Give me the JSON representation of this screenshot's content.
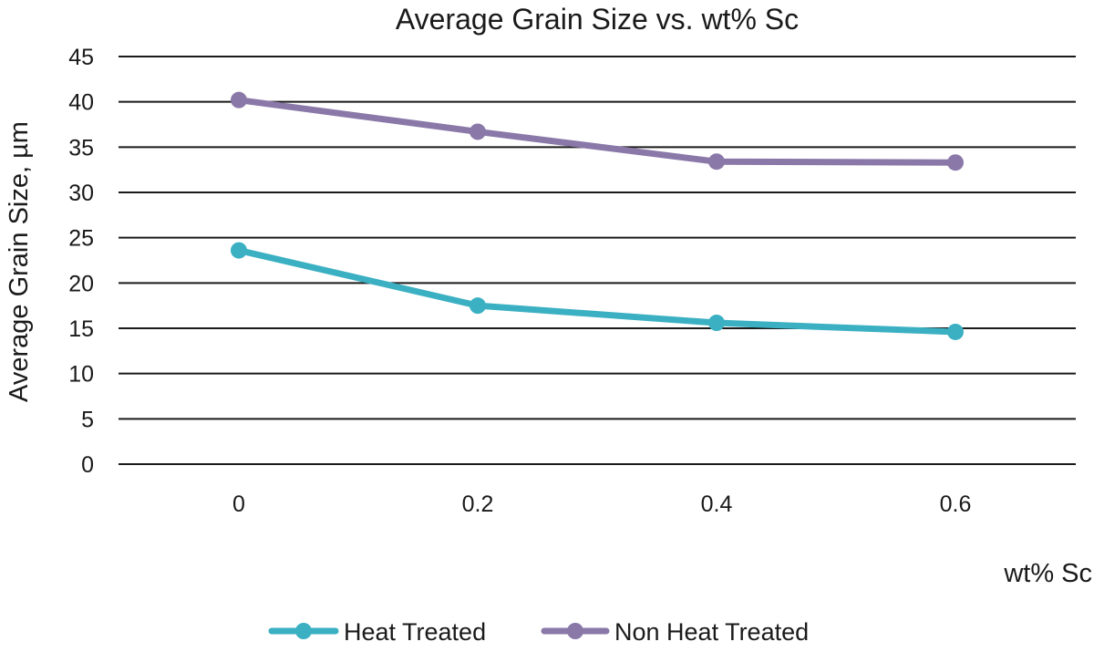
{
  "chart_data": {
    "type": "line",
    "title": "Average Grain Size vs. wt% Sc",
    "xlabel": "wt% Sc",
    "ylabel": "Average Grain Size, µm",
    "categories": [
      "0",
      "0.2",
      "0.4",
      "0.6"
    ],
    "x": [
      0,
      0.2,
      0.4,
      0.6
    ],
    "ylim": [
      0,
      45
    ],
    "yticks": [
      0,
      5,
      10,
      15,
      20,
      25,
      30,
      35,
      40,
      45
    ],
    "grid": true,
    "legend_position": "bottom",
    "series": [
      {
        "name": "Heat Treated",
        "color": "#3bb0c2",
        "values": [
          23.6,
          17.5,
          15.6,
          14.6
        ]
      },
      {
        "name": "Non Heat Treated",
        "color": "#8a78a8",
        "values": [
          40.2,
          36.7,
          33.4,
          33.3
        ]
      }
    ]
  }
}
